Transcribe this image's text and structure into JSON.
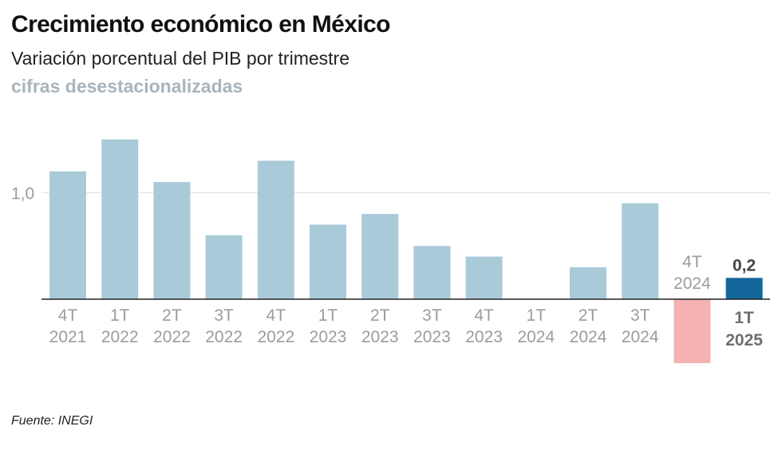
{
  "header": {
    "title": "Crecimiento económico en México",
    "subtitle": "Variación porcentual del PIB por trimestre",
    "note": "cifras desestacionalizadas"
  },
  "source": "Fuente: INEGI",
  "colors": {
    "bar": "#a9cad9",
    "negative": "#f4b2b2",
    "highlight": "#13679a",
    "gridline": "#e2e2e2",
    "axis": "#222222",
    "label": "#9c9c9c",
    "label_dark": "#6f6f6f"
  },
  "chart_data": {
    "type": "bar",
    "title": "Crecimiento económico en México",
    "subtitle": "Variación porcentual del PIB por trimestre",
    "categories": [
      [
        "4T",
        "2021"
      ],
      [
        "1T",
        "2022"
      ],
      [
        "2T",
        "2022"
      ],
      [
        "3T",
        "2022"
      ],
      [
        "4T",
        "2022"
      ],
      [
        "1T",
        "2023"
      ],
      [
        "2T",
        "2023"
      ],
      [
        "3T",
        "2023"
      ],
      [
        "4T",
        "2023"
      ],
      [
        "1T",
        "2024"
      ],
      [
        "2T",
        "2024"
      ],
      [
        "3T",
        "2024"
      ],
      [
        "4T",
        "2024"
      ],
      [
        "1T",
        "2025"
      ]
    ],
    "values": [
      1.2,
      1.5,
      1.1,
      0.6,
      1.3,
      0.7,
      0.8,
      0.5,
      0.4,
      0.0,
      0.3,
      0.9,
      -0.6,
      0.2
    ],
    "value_labels": {
      "13": "0,2"
    },
    "highlight_index": 13,
    "yticks": [
      {
        "value": 1.0,
        "label": "1,0"
      }
    ],
    "ylim": [
      -0.6,
      1.5
    ],
    "grid": true,
    "xlabel": "",
    "ylabel": ""
  }
}
